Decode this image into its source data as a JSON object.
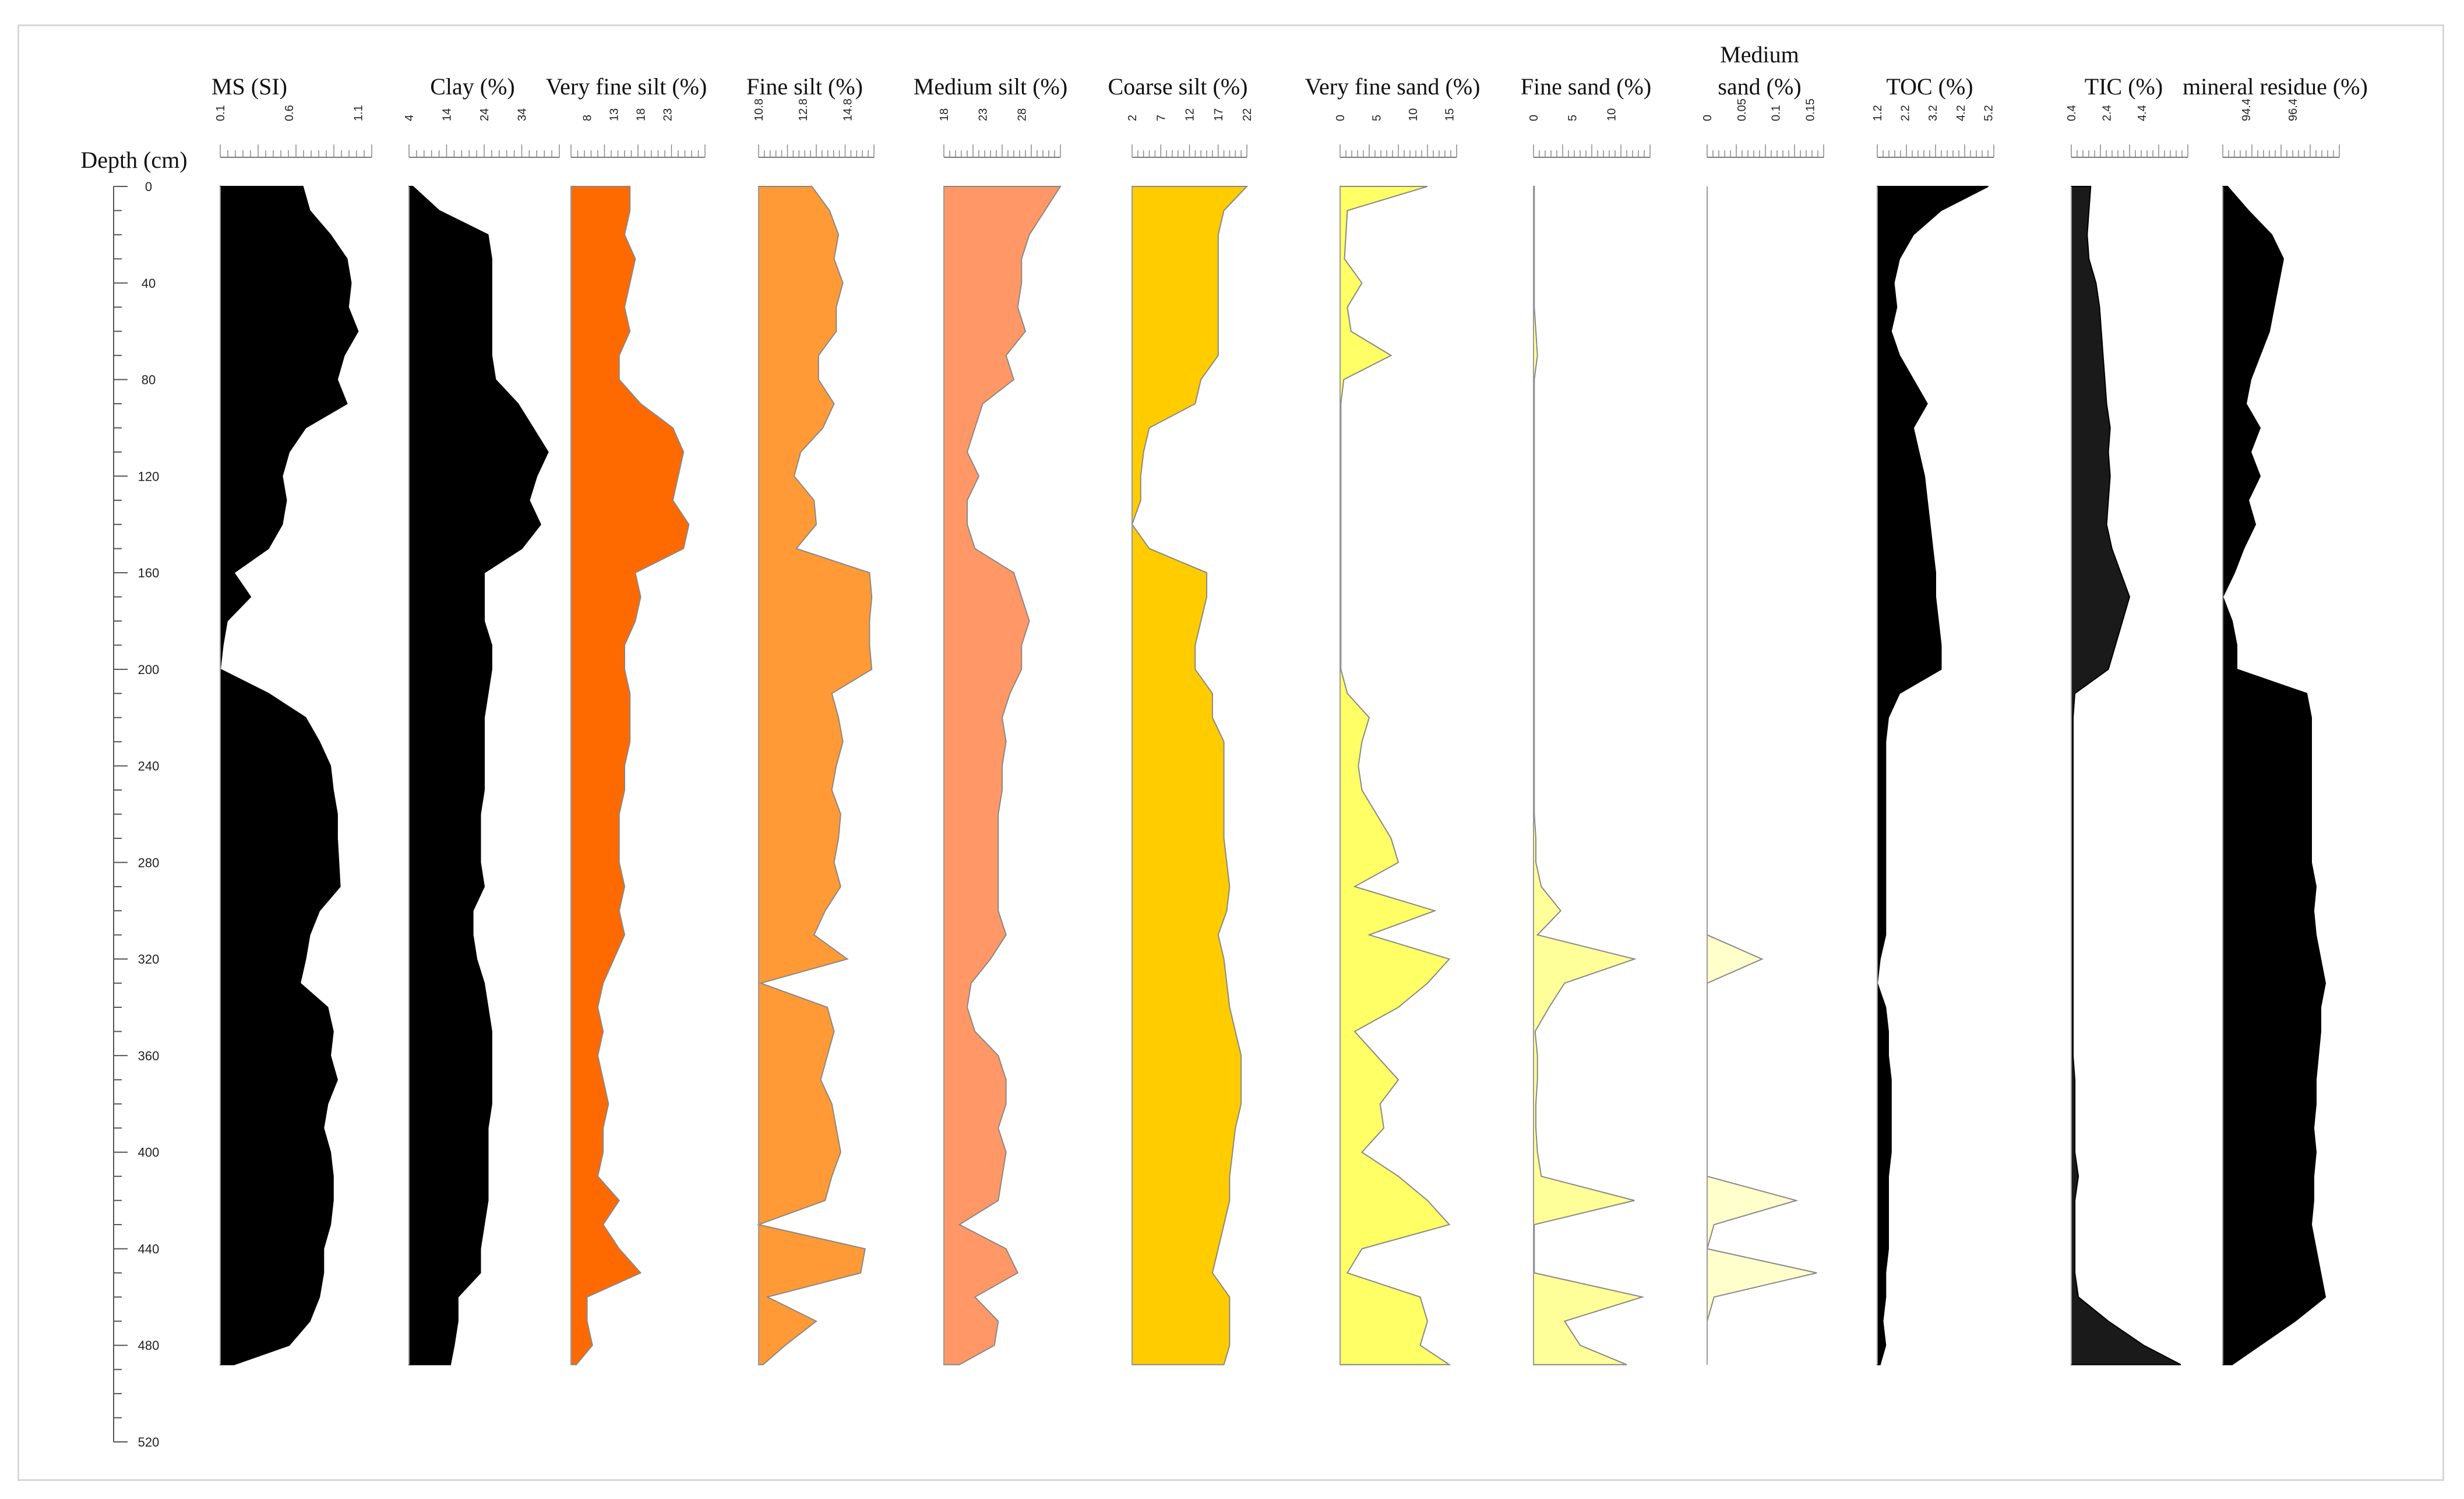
{
  "chart_data": {
    "type": "area",
    "orientation": "vertical-depth-profile",
    "depth_axis": {
      "label": "Depth (cm)",
      "range": [
        0,
        520
      ],
      "ticks": [
        0,
        40,
        80,
        120,
        160,
        200,
        240,
        280,
        320,
        360,
        400,
        440,
        480,
        520
      ]
    },
    "depths": [
      0,
      10,
      20,
      30,
      40,
      50,
      60,
      70,
      80,
      90,
      100,
      110,
      120,
      130,
      140,
      150,
      160,
      170,
      180,
      190,
      200,
      210,
      220,
      230,
      240,
      250,
      260,
      270,
      280,
      290,
      300,
      310,
      320,
      330,
      340,
      350,
      360,
      370,
      380,
      390,
      400,
      410,
      420,
      430,
      440,
      450,
      460,
      470,
      480,
      488
    ],
    "series": [
      {
        "name": "MS (SI)",
        "title_lines": [
          "MS (SI)"
        ],
        "color": "#000000",
        "xlim": [
          0.1,
          1.2
        ],
        "ticks": [
          {
            "v": 0.1,
            "label": "0.1"
          },
          {
            "v": 0.6,
            "label": "0.6"
          },
          {
            "v": 1.1,
            "label": "1.1"
          }
        ],
        "values": [
          0.7,
          0.75,
          0.9,
          1.02,
          1.05,
          1.03,
          1.1,
          1.0,
          0.95,
          1.02,
          0.72,
          0.6,
          0.55,
          0.58,
          0.55,
          0.45,
          0.2,
          0.32,
          0.15,
          0.12,
          0.1,
          0.45,
          0.72,
          0.82,
          0.9,
          0.92,
          0.95,
          0.95,
          0.96,
          0.97,
          0.82,
          0.75,
          0.72,
          0.68,
          0.88,
          0.92,
          0.9,
          0.95,
          0.88,
          0.85,
          0.9,
          0.92,
          0.92,
          0.9,
          0.85,
          0.85,
          0.82,
          0.75,
          0.6,
          0.2
        ]
      },
      {
        "name": "Clay (%)",
        "title_lines": [
          "Clay (%)"
        ],
        "color": "#000000",
        "xlim": [
          4,
          44
        ],
        "ticks": [
          {
            "v": 4,
            "label": "4"
          },
          {
            "v": 14,
            "label": "14"
          },
          {
            "v": 24,
            "label": "24"
          },
          {
            "v": 34,
            "label": "34"
          }
        ],
        "values": [
          5,
          12,
          25,
          26,
          26,
          26,
          26,
          26,
          27,
          33,
          37,
          41,
          38,
          36,
          39,
          34,
          24,
          24,
          24,
          26,
          26,
          25,
          24,
          24,
          24,
          24,
          23,
          23,
          23,
          24,
          21,
          21,
          22,
          24,
          25,
          26,
          26,
          26,
          26,
          25,
          25,
          25,
          25,
          24,
          23,
          23,
          17,
          17,
          16,
          15
        ]
      },
      {
        "name": "Very fine silt (%)",
        "title_lines": [
          "Very fine silt (%)"
        ],
        "color": "#ff6a00",
        "xlim": [
          5,
          30
        ],
        "ticks": [
          {
            "v": 8,
            "label": "8"
          },
          {
            "v": 13,
            "label": "13"
          },
          {
            "v": 18,
            "label": "18"
          },
          {
            "v": 23,
            "label": "23"
          }
        ],
        "values": [
          16,
          16,
          15,
          17,
          16,
          15,
          16,
          14,
          14,
          18,
          24,
          26,
          25,
          24,
          27,
          26,
          17,
          18,
          17,
          15,
          15,
          16,
          16,
          16,
          15,
          15,
          14,
          14,
          14,
          15,
          14,
          15,
          13,
          11,
          10,
          11,
          10,
          11,
          12,
          11,
          11,
          10,
          14,
          11,
          14,
          18,
          8,
          8,
          9,
          6
        ]
      },
      {
        "name": "Fine silt (%)",
        "title_lines": [
          "Fine silt (%)"
        ],
        "color": "#ff9a36",
        "xlim": [
          10.8,
          16.0
        ],
        "ticks": [
          {
            "v": 10.8,
            "label": "10.8"
          },
          {
            "v": 12.8,
            "label": "12.8"
          },
          {
            "v": 14.8,
            "label": "14.8"
          }
        ],
        "values": [
          13.2,
          14.0,
          14.4,
          14.2,
          14.6,
          14.3,
          14.3,
          13.5,
          13.5,
          14.2,
          13.7,
          12.7,
          12.4,
          13.3,
          13.4,
          12.5,
          15.8,
          15.9,
          15.8,
          15.8,
          15.9,
          14.1,
          14.4,
          14.6,
          14.3,
          14.1,
          14.5,
          14.4,
          14.2,
          14.5,
          13.8,
          13.3,
          14.8,
          10.9,
          13.9,
          14.2,
          13.9,
          13.6,
          14.1,
          14.3,
          14.5,
          14.1,
          13.8,
          10.8,
          15.6,
          15.4,
          11.2,
          13.4,
          12.0,
          11.0
        ]
      },
      {
        "name": "Medium silt (%)",
        "title_lines": [
          "Medium silt (%)"
        ],
        "color": "#ff9866",
        "xlim": [
          18,
          33
        ],
        "ticks": [
          {
            "v": 18,
            "label": "18"
          },
          {
            "v": 23,
            "label": "23"
          },
          {
            "v": 28,
            "label": "28"
          }
        ],
        "values": [
          33,
          31,
          29,
          28,
          28,
          27.5,
          28.5,
          26,
          27,
          23,
          22,
          21,
          22.5,
          21,
          21,
          22,
          27,
          28,
          29,
          28,
          28,
          26.5,
          25.5,
          26,
          25.5,
          25.5,
          25,
          25,
          25,
          25,
          25,
          26,
          24,
          21.5,
          21,
          22,
          25,
          26,
          26,
          25,
          26,
          25.5,
          25,
          20,
          26,
          27.5,
          22,
          25,
          24.5,
          20
        ]
      },
      {
        "name": "Coarse silt (%)",
        "title_lines": [
          "Coarse silt (%)"
        ],
        "color": "#ffcc00",
        "xlim": [
          2,
          22
        ],
        "ticks": [
          {
            "v": 2,
            "label": "2"
          },
          {
            "v": 7,
            "label": "7"
          },
          {
            "v": 12,
            "label": "12"
          },
          {
            "v": 17,
            "label": "17"
          },
          {
            "v": 22,
            "label": "22"
          }
        ],
        "values": [
          22,
          18,
          17,
          17,
          17,
          17,
          17,
          17,
          14,
          13,
          5,
          4,
          3.5,
          3.5,
          2,
          5,
          15,
          15,
          14,
          13,
          13,
          16,
          16,
          18,
          18,
          18,
          18,
          18,
          18.5,
          19,
          18.5,
          17,
          18,
          18.5,
          19,
          20,
          21,
          21,
          21,
          20,
          19.5,
          19,
          19,
          18,
          17,
          16,
          19,
          19,
          19,
          18
        ]
      },
      {
        "name": "Very fine sand (%)",
        "title_lines": [
          "Very fine sand (%)"
        ],
        "color": "#ffff66",
        "xlim": [
          0,
          16
        ],
        "ticks": [
          {
            "v": 0,
            "label": "0"
          },
          {
            "v": 5,
            "label": "5"
          },
          {
            "v": 10,
            "label": "10"
          },
          {
            "v": 15,
            "label": "15"
          }
        ],
        "values": [
          12,
          1,
          0.8,
          0.6,
          3,
          1,
          1.5,
          7,
          0.5,
          0.1,
          0.1,
          0.1,
          0.1,
          0.1,
          0.1,
          0.1,
          0.1,
          0.1,
          0.1,
          0.1,
          0.1,
          1,
          4,
          3,
          2.5,
          3,
          5,
          7,
          8,
          2,
          13,
          4,
          15,
          12,
          8,
          2,
          5,
          8,
          5.5,
          6,
          3,
          8,
          12,
          15,
          3,
          1,
          11,
          12,
          11,
          15
        ]
      },
      {
        "name": "Fine sand (%)",
        "title_lines": [
          "Fine sand (%)"
        ],
        "color": "#ffff99",
        "xlim": [
          0,
          15
        ],
        "ticks": [
          {
            "v": 0,
            "label": "0"
          },
          {
            "v": 5,
            "label": "5"
          },
          {
            "v": 10,
            "label": "10"
          }
        ],
        "values": [
          0.1,
          0.1,
          0.1,
          0.1,
          0.1,
          0.1,
          0.3,
          0.5,
          0.1,
          0.1,
          0.1,
          0.1,
          0.1,
          0.1,
          0.1,
          0.1,
          0.1,
          0.1,
          0.1,
          0.1,
          0.1,
          0.1,
          0.1,
          0.1,
          0.1,
          0.1,
          0.1,
          0.3,
          0.3,
          1,
          3.5,
          0.5,
          13,
          4,
          2,
          0.2,
          0.5,
          0.5,
          0.3,
          0.3,
          0.5,
          1,
          13,
          0.1,
          0.1,
          0.1,
          14,
          4,
          6,
          12
        ]
      },
      {
        "name": "Medium sand (%)",
        "title_lines": [
          "Medium",
          "sand (%)"
        ],
        "color": "#ffffcc",
        "xlim": [
          0,
          0.17
        ],
        "ticks": [
          {
            "v": 0,
            "label": "0"
          },
          {
            "v": 0.05,
            "label": "0.05"
          },
          {
            "v": 0.1,
            "label": "0.1"
          },
          {
            "v": 0.15,
            "label": "0.15"
          }
        ],
        "values": [
          0,
          0,
          0,
          0,
          0,
          0,
          0,
          0,
          0,
          0,
          0,
          0,
          0,
          0,
          0,
          0,
          0,
          0,
          0,
          0,
          0,
          0,
          0,
          0,
          0,
          0,
          0,
          0,
          0,
          0,
          0,
          0,
          0.08,
          0,
          0,
          0,
          0,
          0,
          0,
          0,
          0,
          0,
          0.13,
          0.01,
          0,
          0.16,
          0.01,
          0,
          0,
          0
        ]
      },
      {
        "name": "TOC (%)",
        "title_lines": [
          "TOC (%)"
        ],
        "color": "#000000",
        "xlim": [
          1.2,
          5.4
        ],
        "ticks": [
          {
            "v": 1.2,
            "label": "1.2"
          },
          {
            "v": 2.2,
            "label": "2.2"
          },
          {
            "v": 3.2,
            "label": "3.2"
          },
          {
            "v": 4.2,
            "label": "4.2"
          },
          {
            "v": 5.2,
            "label": "5.2"
          }
        ],
        "values": [
          5.2,
          3.5,
          2.5,
          2.0,
          1.8,
          1.9,
          1.7,
          2.0,
          2.5,
          3.0,
          2.5,
          2.7,
          2.9,
          3.0,
          3.1,
          3.2,
          3.3,
          3.3,
          3.4,
          3.5,
          3.5,
          2.0,
          1.6,
          1.5,
          1.5,
          1.5,
          1.5,
          1.5,
          1.5,
          1.5,
          1.5,
          1.5,
          1.3,
          1.2,
          1.5,
          1.6,
          1.6,
          1.7,
          1.7,
          1.7,
          1.7,
          1.6,
          1.6,
          1.6,
          1.6,
          1.5,
          1.5,
          1.4,
          1.5,
          1.3
        ]
      },
      {
        "name": "TIC (%)",
        "title_lines": [
          "TIC (%)"
        ],
        "color": "#1a1a1a",
        "xlim": [
          0.4,
          7.0
        ],
        "ticks": [
          {
            "v": 0.4,
            "label": "0.4"
          },
          {
            "v": 2.4,
            "label": "2.4"
          },
          {
            "v": 4.4,
            "label": "4.4"
          }
        ],
        "values": [
          1.5,
          1.4,
          1.3,
          1.4,
          1.8,
          2.0,
          2.1,
          2.2,
          2.3,
          2.4,
          2.6,
          2.5,
          2.6,
          2.5,
          2.4,
          2.7,
          3.2,
          3.7,
          3.3,
          2.9,
          2.5,
          0.6,
          0.5,
          0.5,
          0.5,
          0.5,
          0.5,
          0.5,
          0.5,
          0.5,
          0.5,
          0.5,
          0.5,
          0.5,
          0.5,
          0.5,
          0.5,
          0.6,
          0.6,
          0.6,
          0.6,
          0.8,
          0.6,
          0.6,
          0.6,
          0.6,
          0.8,
          2.5,
          4.5,
          6.6
        ]
      },
      {
        "name": "mineral residue (%)",
        "title_lines": [
          "mineral residue (%)"
        ],
        "color": "#000000",
        "xlim": [
          93.4,
          98.4
        ],
        "ticks": [
          {
            "v": 94.4,
            "label": "94.4"
          },
          {
            "v": 96.4,
            "label": "96.4"
          }
        ],
        "values": [
          93.6,
          94.5,
          95.5,
          96.0,
          95.8,
          95.6,
          95.4,
          95.0,
          94.6,
          94.4,
          95.0,
          94.6,
          95.0,
          94.5,
          94.8,
          94.3,
          93.9,
          93.4,
          93.8,
          94.0,
          94.0,
          97.0,
          97.2,
          97.2,
          97.2,
          97.2,
          97.2,
          97.2,
          97.2,
          97.4,
          97.3,
          97.4,
          97.6,
          97.8,
          97.6,
          97.6,
          97.5,
          97.4,
          97.4,
          97.3,
          97.4,
          97.3,
          97.3,
          97.2,
          97.4,
          97.6,
          97.8,
          96.5,
          95.0,
          93.8
        ]
      }
    ]
  }
}
